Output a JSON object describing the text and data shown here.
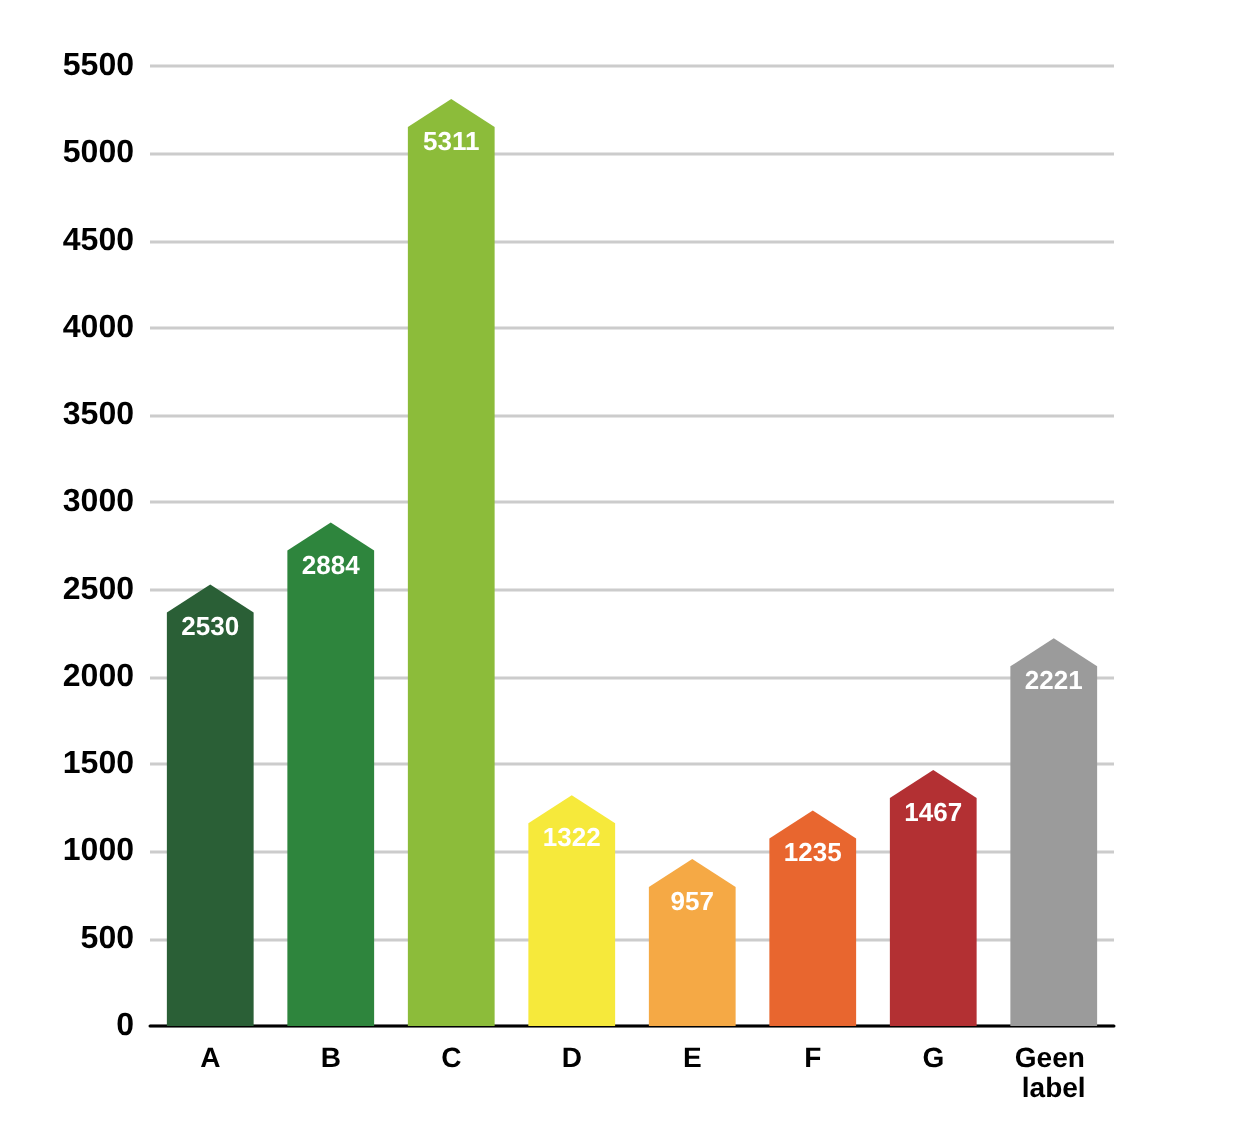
{
  "chart_data": {
    "type": "bar",
    "categories": [
      "A",
      "B",
      "C",
      "D",
      "E",
      "F",
      "G",
      "Geen label"
    ],
    "values": [
      2530,
      2884,
      5311,
      1322,
      957,
      1235,
      1467,
      2221
    ],
    "colors": [
      "#2a5f36",
      "#2e853d",
      "#8cbc3a",
      "#f6e93b",
      "#f5a945",
      "#e8662f",
      "#b33033",
      "#9b9b9b"
    ],
    "ylim": [
      0,
      5500
    ],
    "yticks": [
      0,
      500,
      1000,
      1500,
      2000,
      2500,
      3000,
      3500,
      4000,
      4500,
      5000,
      5500
    ],
    "grid": "y",
    "data_labels": true
  }
}
